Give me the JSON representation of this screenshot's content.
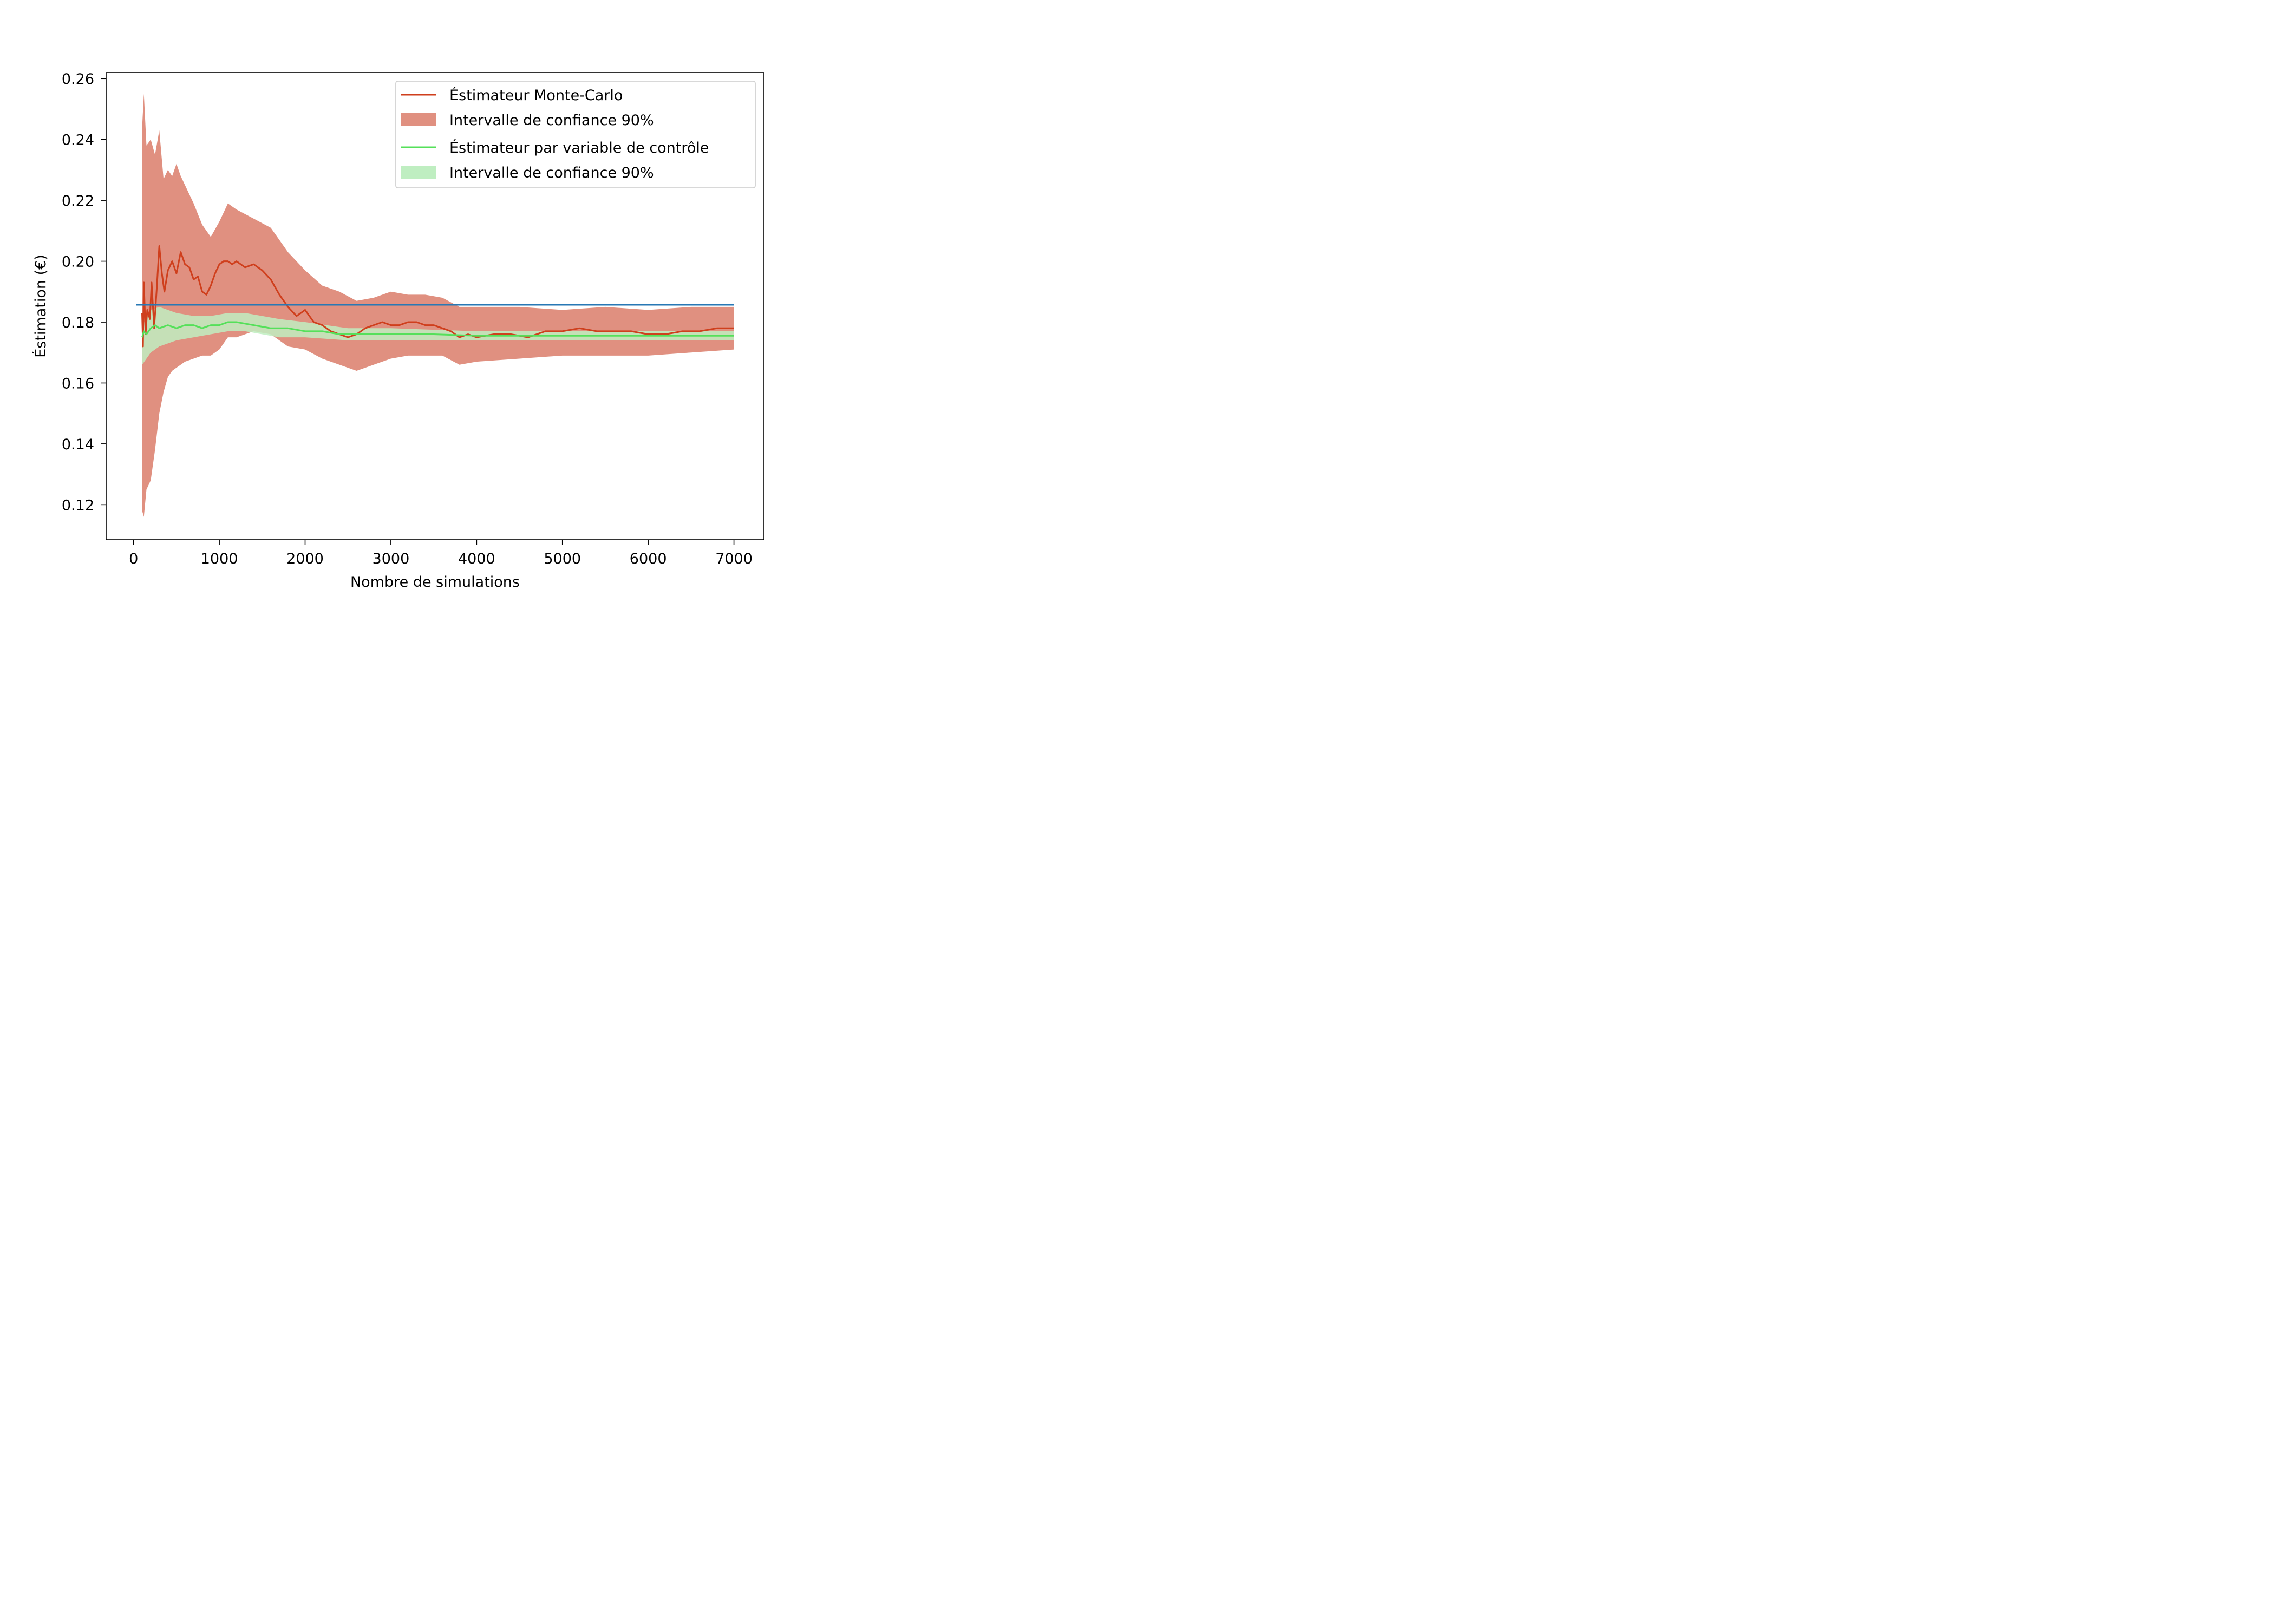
{
  "chart_data": {
    "type": "line",
    "title": "",
    "xlabel": "Nombre de simulations",
    "ylabel": "Éstimation (€)",
    "xlim": [
      -320,
      7350
    ],
    "ylim": [
      0.1085,
      0.262
    ],
    "xticks": [
      0,
      1000,
      2000,
      3000,
      4000,
      5000,
      6000,
      7000
    ],
    "yticks": [
      0.12,
      0.14,
      0.16,
      0.18,
      0.2,
      0.22,
      0.24,
      0.26
    ],
    "xtick_labels": [
      "0",
      "1000",
      "2000",
      "3000",
      "4000",
      "5000",
      "6000",
      "7000"
    ],
    "ytick_labels": [
      "0.12",
      "0.14",
      "0.16",
      "0.18",
      "0.20",
      "0.22",
      "0.24",
      "0.26"
    ],
    "grid": false,
    "legend_position": "top-right",
    "reference_line": {
      "value": 0.1857,
      "x_range": [
        30,
        7000
      ],
      "color": "#2878b5"
    },
    "series": [
      {
        "name": "Éstimateur Monte-Carlo",
        "kind": "line",
        "color": "#cf3f1d",
        "x": [
          100,
          110,
          120,
          140,
          160,
          190,
          210,
          240,
          270,
          300,
          330,
          360,
          400,
          450,
          500,
          550,
          600,
          650,
          700,
          750,
          800,
          850,
          900,
          950,
          1000,
          1050,
          1100,
          1150,
          1200,
          1300,
          1400,
          1500,
          1600,
          1700,
          1800,
          1900,
          2000,
          2100,
          2200,
          2300,
          2400,
          2500,
          2600,
          2700,
          2800,
          2900,
          3000,
          3100,
          3200,
          3300,
          3400,
          3500,
          3600,
          3700,
          3800,
          3900,
          4000,
          4200,
          4400,
          4600,
          4800,
          5000,
          5200,
          5400,
          5600,
          5800,
          6000,
          6200,
          6400,
          6600,
          6800,
          7000
        ],
        "y": [
          0.183,
          0.172,
          0.193,
          0.176,
          0.184,
          0.181,
          0.193,
          0.178,
          0.191,
          0.205,
          0.196,
          0.19,
          0.197,
          0.2,
          0.196,
          0.203,
          0.199,
          0.198,
          0.194,
          0.195,
          0.19,
          0.189,
          0.192,
          0.196,
          0.199,
          0.2,
          0.2,
          0.199,
          0.2,
          0.198,
          0.199,
          0.197,
          0.194,
          0.189,
          0.185,
          0.182,
          0.184,
          0.18,
          0.179,
          0.177,
          0.176,
          0.175,
          0.176,
          0.178,
          0.179,
          0.18,
          0.179,
          0.179,
          0.18,
          0.18,
          0.179,
          0.179,
          0.178,
          0.177,
          0.175,
          0.176,
          0.175,
          0.176,
          0.176,
          0.175,
          0.177,
          0.177,
          0.178,
          0.177,
          0.177,
          0.177,
          0.176,
          0.176,
          0.177,
          0.177,
          0.178,
          0.178
        ]
      },
      {
        "name": "Intervalle de confiance 90%",
        "kind": "band",
        "color": "#e09080",
        "x": [
          100,
          120,
          150,
          200,
          250,
          300,
          350,
          400,
          450,
          500,
          550,
          600,
          700,
          800,
          900,
          1000,
          1100,
          1200,
          1400,
          1600,
          1800,
          2000,
          2200,
          2400,
          2600,
          2800,
          3000,
          3200,
          3400,
          3600,
          3800,
          4000,
          4500,
          5000,
          5500,
          6000,
          6500,
          7000
        ],
        "low": [
          0.118,
          0.116,
          0.125,
          0.128,
          0.138,
          0.15,
          0.157,
          0.162,
          0.164,
          0.165,
          0.166,
          0.167,
          0.168,
          0.169,
          0.169,
          0.171,
          0.175,
          0.175,
          0.177,
          0.176,
          0.172,
          0.171,
          0.168,
          0.166,
          0.164,
          0.166,
          0.168,
          0.169,
          0.169,
          0.169,
          0.166,
          0.167,
          0.168,
          0.169,
          0.169,
          0.169,
          0.17,
          0.171
        ],
        "high": [
          0.244,
          0.255,
          0.238,
          0.24,
          0.235,
          0.243,
          0.227,
          0.23,
          0.228,
          0.232,
          0.228,
          0.225,
          0.219,
          0.212,
          0.208,
          0.213,
          0.219,
          0.217,
          0.214,
          0.211,
          0.203,
          0.197,
          0.192,
          0.19,
          0.187,
          0.188,
          0.19,
          0.189,
          0.189,
          0.188,
          0.185,
          0.185,
          0.185,
          0.184,
          0.185,
          0.184,
          0.185,
          0.185
        ]
      },
      {
        "name": "Éstimateur par variable de contrôle",
        "kind": "line",
        "color": "#55e05a",
        "x": [
          100,
          120,
          150,
          200,
          250,
          300,
          400,
          500,
          600,
          700,
          800,
          900,
          1000,
          1100,
          1200,
          1400,
          1600,
          1800,
          2000,
          2200,
          2400,
          2600,
          3000,
          3500,
          4000,
          5000,
          6000,
          7000
        ],
        "y": [
          0.175,
          0.177,
          0.176,
          0.178,
          0.179,
          0.178,
          0.179,
          0.178,
          0.179,
          0.179,
          0.178,
          0.179,
          0.179,
          0.18,
          0.18,
          0.179,
          0.178,
          0.178,
          0.177,
          0.177,
          0.176,
          0.176,
          0.176,
          0.176,
          0.1755,
          0.1755,
          0.1755,
          0.1755
        ]
      },
      {
        "name": "Intervalle de confiance 90%",
        "kind": "band",
        "color": "#bfeec1",
        "x": [
          100,
          150,
          200,
          300,
          400,
          500,
          700,
          900,
          1100,
          1300,
          1500,
          1700,
          2000,
          2500,
          3000,
          4000,
          5000,
          6000,
          7000
        ],
        "low": [
          0.166,
          0.168,
          0.17,
          0.172,
          0.173,
          0.174,
          0.175,
          0.176,
          0.177,
          0.177,
          0.176,
          0.175,
          0.175,
          0.174,
          0.174,
          0.174,
          0.174,
          0.174,
          0.174
        ],
        "high": [
          0.179,
          0.181,
          0.184,
          0.185,
          0.184,
          0.183,
          0.182,
          0.182,
          0.183,
          0.183,
          0.182,
          0.181,
          0.18,
          0.178,
          0.178,
          0.177,
          0.177,
          0.177,
          0.177
        ]
      }
    ]
  }
}
